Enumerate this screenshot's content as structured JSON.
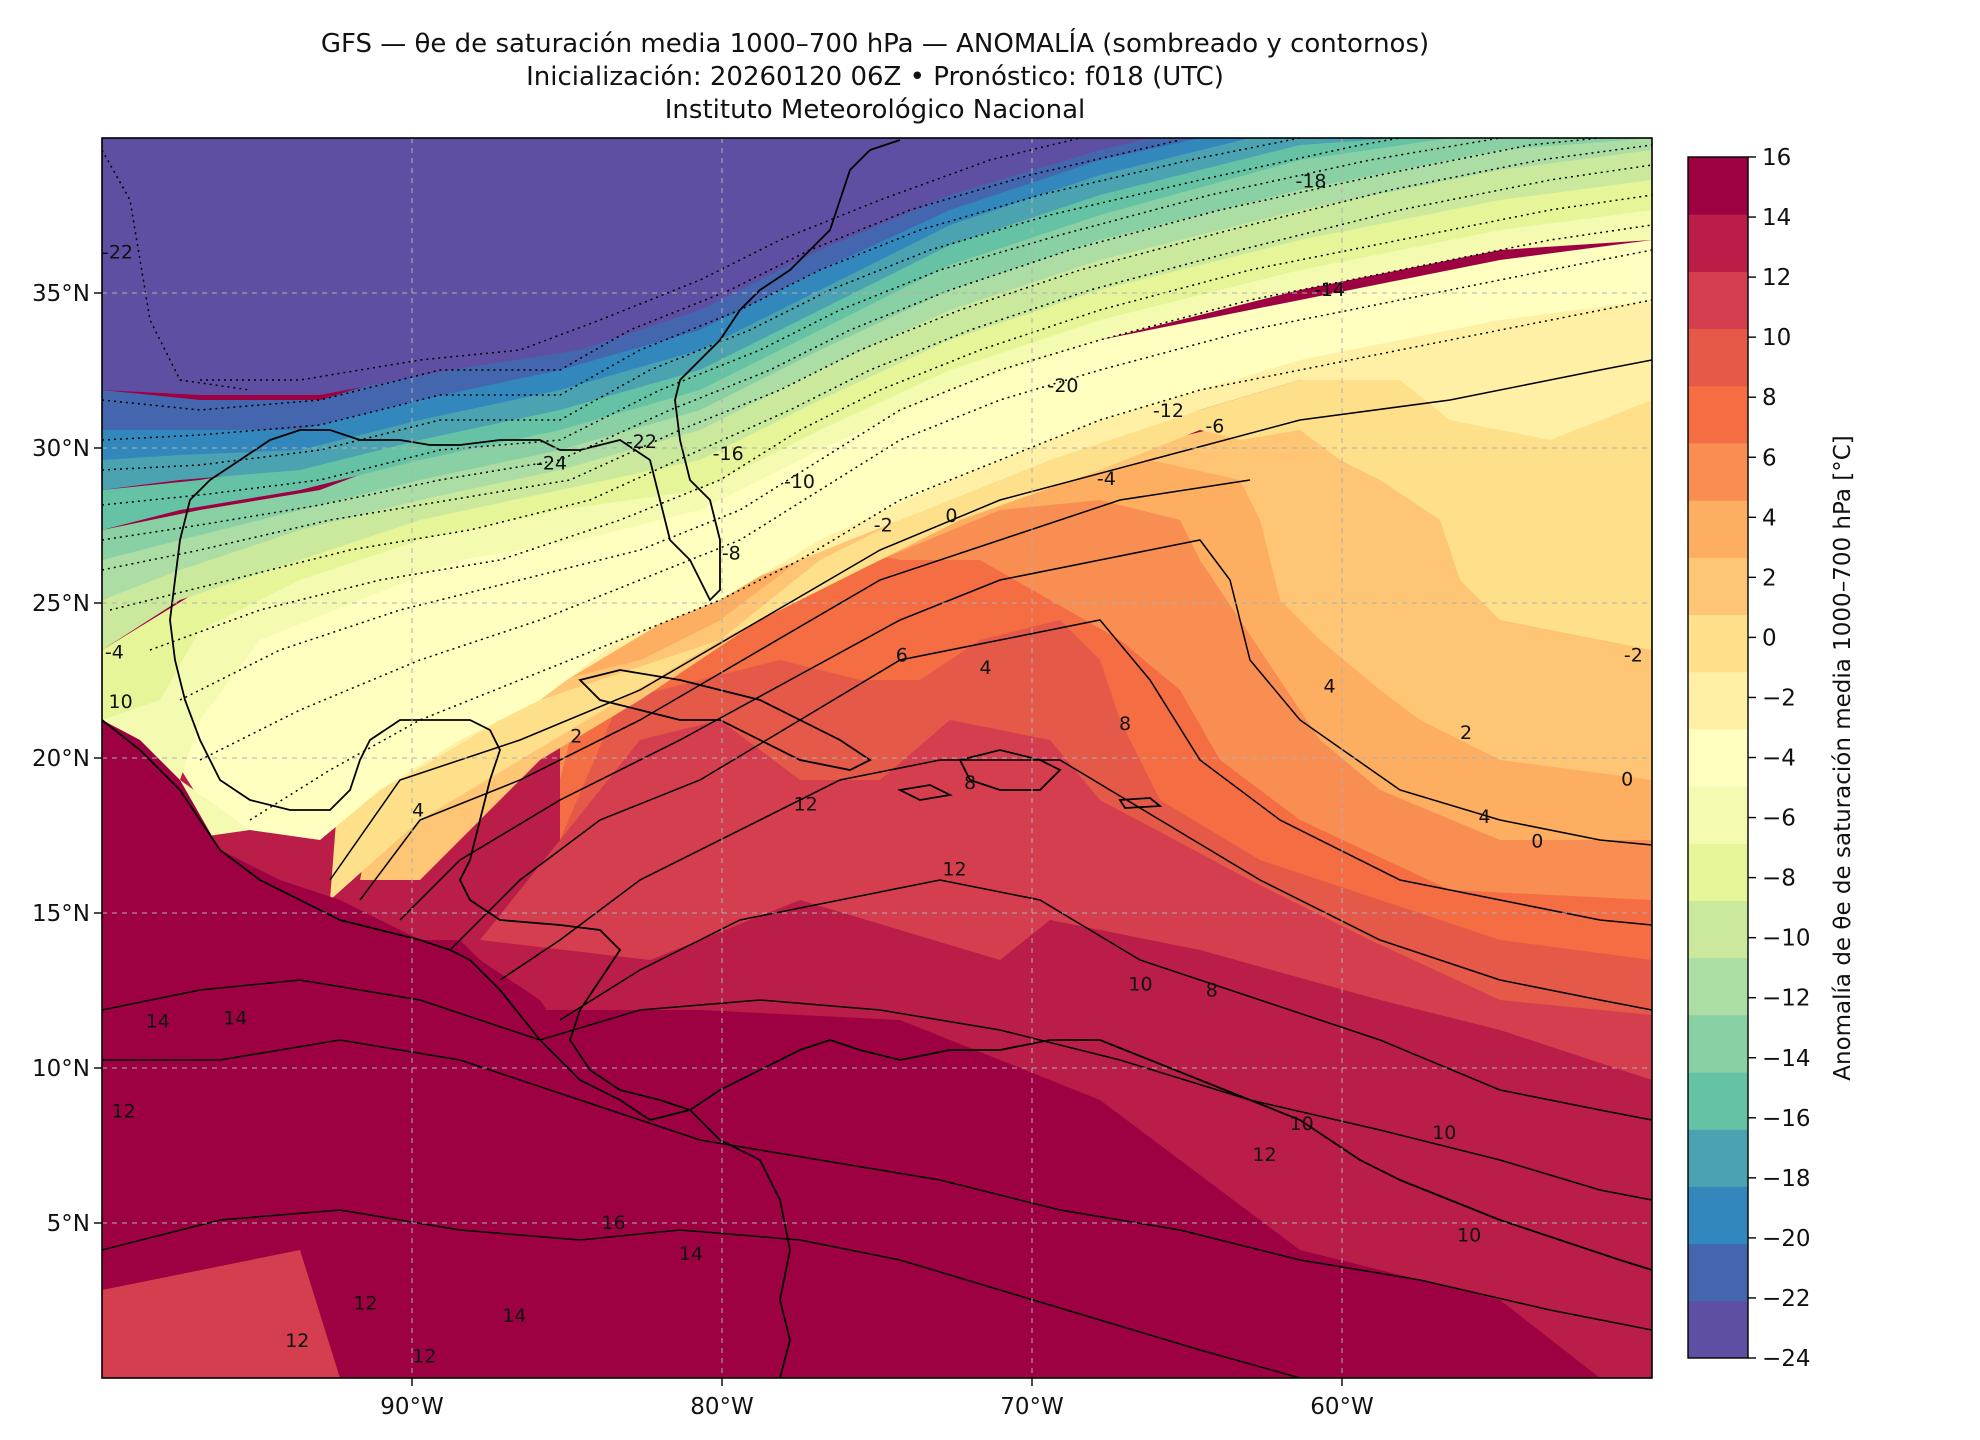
{
  "title": {
    "line1": "GFS — θe de saturación media 1000–700 hPa — ANOMALÍA (sombreado y contornos)",
    "line2": "Inicialización: 20260120 06Z   •   Pronóstico: f018 (UTC)",
    "line3": "Instituto Meteorológico Nacional"
  },
  "map": {
    "lon_range": [
      -100,
      -50
    ],
    "lat_range": [
      0,
      40
    ],
    "lon_ticks": [
      {
        "value": -90,
        "label": "90°W"
      },
      {
        "value": -80,
        "label": "80°W"
      },
      {
        "value": -70,
        "label": "70°W"
      },
      {
        "value": -60,
        "label": "60°W"
      }
    ],
    "lat_ticks": [
      {
        "value": 35,
        "label": "35°N"
      },
      {
        "value": 30,
        "label": "30°N"
      },
      {
        "value": 25,
        "label": "25°N"
      },
      {
        "value": 20,
        "label": "20°N"
      },
      {
        "value": 15,
        "label": "15°N"
      },
      {
        "value": 10,
        "label": "10°N"
      },
      {
        "value": 5,
        "label": "5°N"
      }
    ],
    "gridlines": true,
    "contour_labels": [
      {
        "text": "-22",
        "lon": -99.5,
        "lat": 36.3
      },
      {
        "text": "-24",
        "lon": -85.5,
        "lat": 29.5
      },
      {
        "text": "-22",
        "lon": -82.6,
        "lat": 30.2
      },
      {
        "text": "-20",
        "lon": -69.0,
        "lat": 32.0
      },
      {
        "text": "-18",
        "lon": -61.0,
        "lat": 38.6
      },
      {
        "text": "-16",
        "lon": -79.8,
        "lat": 29.8
      },
      {
        "text": "-14",
        "lon": -60.4,
        "lat": 35.1
      },
      {
        "text": "-12",
        "lon": -65.6,
        "lat": 31.2
      },
      {
        "text": "-10",
        "lon": -77.5,
        "lat": 28.9
      },
      {
        "text": "-8",
        "lon": -79.7,
        "lat": 26.6
      },
      {
        "text": "-6",
        "lon": -64.1,
        "lat": 30.7
      },
      {
        "text": "-4",
        "lon": -67.6,
        "lat": 29.0
      },
      {
        "text": "-2",
        "lon": -74.8,
        "lat": 27.5
      },
      {
        "text": "0",
        "lon": -72.6,
        "lat": 27.8
      },
      {
        "text": "4",
        "lon": -71.5,
        "lat": 22.9
      },
      {
        "text": "6",
        "lon": -74.2,
        "lat": 23.3
      },
      {
        "text": "8",
        "lon": -67.0,
        "lat": 21.1
      },
      {
        "text": "2",
        "lon": -84.7,
        "lat": 20.7
      },
      {
        "text": "4",
        "lon": -89.8,
        "lat": 18.3
      },
      {
        "text": "4",
        "lon": -60.4,
        "lat": 22.3
      },
      {
        "text": "2",
        "lon": -56.0,
        "lat": 20.8
      },
      {
        "text": "0",
        "lon": -50.8,
        "lat": 19.3
      },
      {
        "text": "-2",
        "lon": -50.6,
        "lat": 23.3
      },
      {
        "text": "4",
        "lon": -55.4,
        "lat": 18.1
      },
      {
        "text": "0",
        "lon": -53.7,
        "lat": 17.3
      },
      {
        "text": "12",
        "lon": -77.3,
        "lat": 18.5
      },
      {
        "text": "12",
        "lon": -72.5,
        "lat": 16.4
      },
      {
        "text": "8",
        "lon": -72.0,
        "lat": 19.2
      },
      {
        "text": "10",
        "lon": -66.5,
        "lat": 12.7
      },
      {
        "text": "8",
        "lon": -64.2,
        "lat": 12.5
      },
      {
        "text": "14",
        "lon": -98.2,
        "lat": 11.5
      },
      {
        "text": "14",
        "lon": -95.7,
        "lat": 11.6
      },
      {
        "text": "12",
        "lon": -99.3,
        "lat": 8.6
      },
      {
        "text": "16",
        "lon": -83.5,
        "lat": 5.0
      },
      {
        "text": "14",
        "lon": -81.0,
        "lat": 4.0
      },
      {
        "text": "12",
        "lon": -91.5,
        "lat": 2.4
      },
      {
        "text": "12",
        "lon": -93.7,
        "lat": 1.2
      },
      {
        "text": "12",
        "lon": -89.6,
        "lat": 0.7
      },
      {
        "text": "14",
        "lon": -86.7,
        "lat": 2.0
      },
      {
        "text": "10",
        "lon": -61.3,
        "lat": 8.2
      },
      {
        "text": "12",
        "lon": -62.5,
        "lat": 7.2
      },
      {
        "text": "10",
        "lon": -56.7,
        "lat": 7.9
      },
      {
        "text": "10",
        "lon": -55.9,
        "lat": 4.6
      },
      {
        "text": "10",
        "lon": -99.4,
        "lat": 21.8
      },
      {
        "text": "-4",
        "lon": -99.6,
        "lat": 23.4
      }
    ]
  },
  "colorbar": {
    "label": "Anomalía de θe de saturación media 1000–700 hPa [°C]",
    "min": -24,
    "max": 16,
    "step": 2,
    "tick_labels": [
      "16",
      "14",
      "12",
      "10",
      "8",
      "6",
      "4",
      "2",
      "0",
      "−2",
      "−4",
      "−6",
      "−8",
      "−10",
      "−12",
      "−14",
      "−16",
      "−18",
      "−20",
      "−22",
      "−24"
    ],
    "colors": [
      "#5e4fa2",
      "#4466ae",
      "#3288bd",
      "#4ba2b1",
      "#66c2a5",
      "#89d0a4",
      "#abdda4",
      "#cbe99d",
      "#e6f598",
      "#f4fab0",
      "#ffffbf",
      "#fff0a6",
      "#fee08b",
      "#fdc574",
      "#fdae61",
      "#f98e52",
      "#f46d43",
      "#e55949",
      "#d53e4f",
      "#b91d48",
      "#9e0142"
    ]
  }
}
